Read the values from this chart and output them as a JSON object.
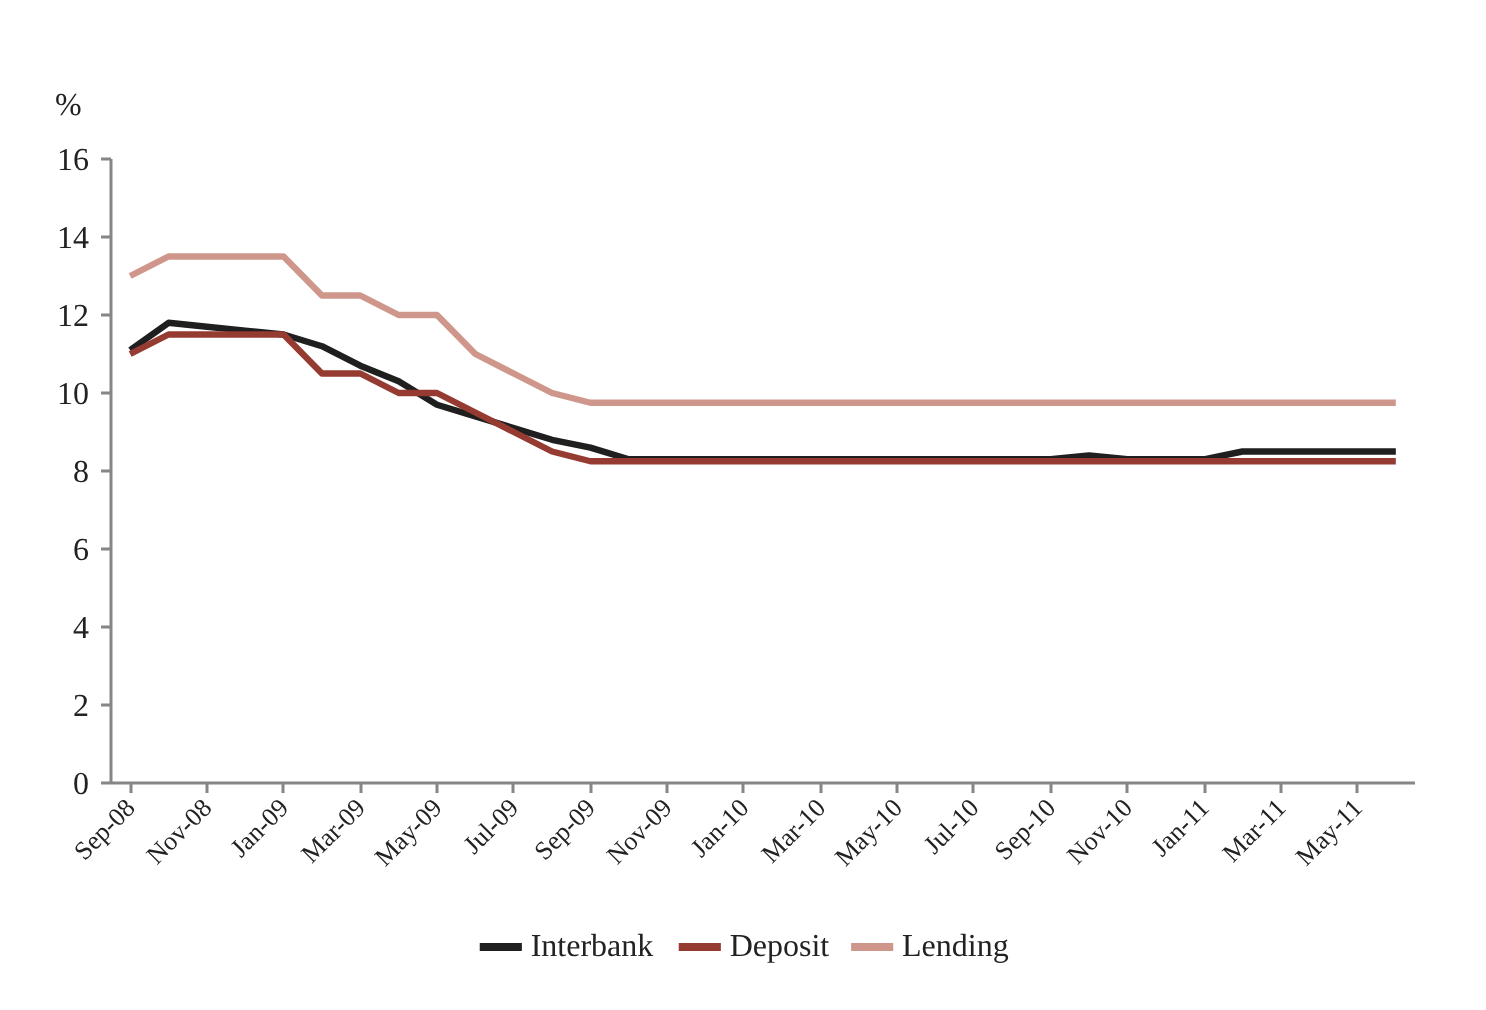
{
  "chart_data": {
    "type": "line",
    "ylabel": "%",
    "categories": [
      "Sep-08",
      null,
      "Nov-08",
      null,
      "Jan-09",
      null,
      "Mar-09",
      null,
      "May-09",
      null,
      "Jul-09",
      null,
      "Sep-09",
      null,
      "Nov-09",
      null,
      "Jan-10",
      null,
      "Mar-10",
      null,
      "May-10",
      null,
      "Jul-10",
      null,
      "Sep-10",
      null,
      "Nov-10",
      null,
      "Jan-11",
      null,
      "Mar-11",
      null,
      "May-11",
      null
    ],
    "series": [
      {
        "name": "Interbank",
        "color": "#1f1f1f",
        "values": [
          11.1,
          11.8,
          11.7,
          11.6,
          11.5,
          11.2,
          10.7,
          10.3,
          9.7,
          9.4,
          9.1,
          8.8,
          8.6,
          8.3,
          8.3,
          8.3,
          8.3,
          8.3,
          8.3,
          8.3,
          8.3,
          8.3,
          8.3,
          8.3,
          8.3,
          8.4,
          8.3,
          8.3,
          8.3,
          8.5,
          8.5,
          8.5,
          8.5,
          8.5
        ]
      },
      {
        "name": "Deposit",
        "color": "#963b31",
        "values": [
          11.0,
          11.5,
          11.5,
          11.5,
          11.5,
          10.5,
          10.5,
          10.0,
          10.0,
          9.5,
          9.0,
          8.5,
          8.25,
          8.25,
          8.25,
          8.25,
          8.25,
          8.25,
          8.25,
          8.25,
          8.25,
          8.25,
          8.25,
          8.25,
          8.25,
          8.25,
          8.25,
          8.25,
          8.25,
          8.25,
          8.25,
          8.25,
          8.25,
          8.25
        ]
      },
      {
        "name": "Lending",
        "color": "#cf978c",
        "values": [
          13.0,
          13.5,
          13.5,
          13.5,
          13.5,
          12.5,
          12.5,
          12.0,
          12.0,
          11.0,
          10.5,
          10.0,
          9.75,
          9.75,
          9.75,
          9.75,
          9.75,
          9.75,
          9.75,
          9.75,
          9.75,
          9.75,
          9.75,
          9.75,
          9.75,
          9.75,
          9.75,
          9.75,
          9.75,
          9.75,
          9.75,
          9.75,
          9.75,
          9.75
        ]
      }
    ],
    "ylim": [
      0,
      16
    ],
    "yticks": [
      0,
      2,
      4,
      6,
      8,
      10,
      12,
      14,
      16
    ],
    "legend": "bottom"
  }
}
